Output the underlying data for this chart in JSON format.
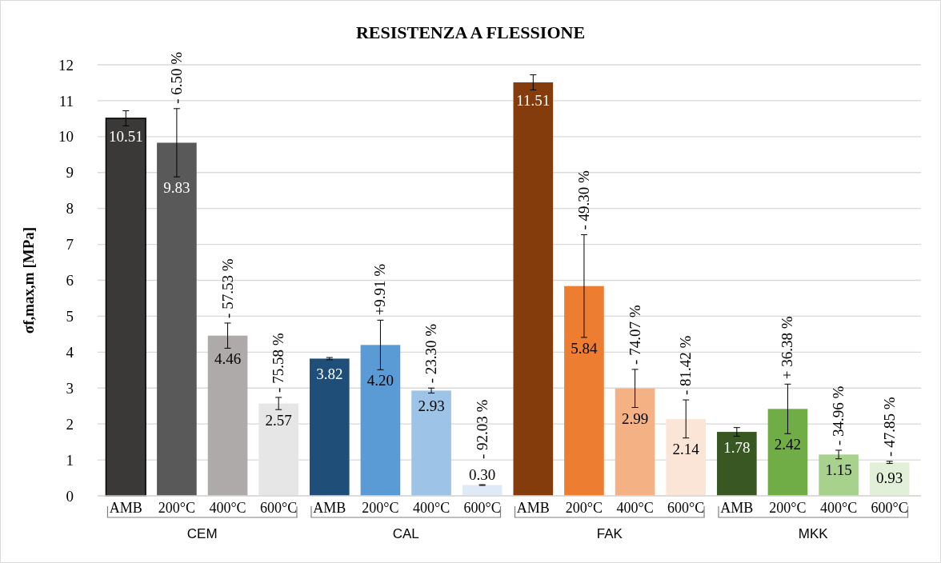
{
  "chart_data": {
    "type": "bar",
    "title": "RESISTENZA A FLESSIONE",
    "ylabel": "σf,max,m [MPa]",
    "categories": [
      "AMB",
      "200°C",
      "400°C",
      "600°C",
      "AMB",
      "200°C",
      "400°C",
      "600°C",
      "AMB",
      "200°C",
      "400°C",
      "600°C",
      "AMB",
      "200°C",
      "400°C",
      "600°C"
    ],
    "values": [
      10.51,
      9.83,
      4.46,
      2.57,
      3.82,
      4.2,
      2.93,
      0.3,
      11.51,
      5.84,
      2.99,
      2.14,
      1.78,
      2.42,
      1.15,
      0.93
    ],
    "colors": [
      "#3a3938",
      "#595959",
      "#aeaaaa",
      "#e7e6e6",
      "#1f4e79",
      "#5b9bd5",
      "#9dc3e6",
      "#deebf7",
      "#843c0c",
      "#ed7d31",
      "#f4b183",
      "#fbe5d6",
      "#385723",
      "#70ad47",
      "#a9d18e",
      "#e2f0d9"
    ],
    "errors": [
      0.21,
      0.95,
      0.35,
      0.17,
      0.03,
      0.69,
      0.07,
      0.01,
      0.21,
      1.43,
      0.53,
      0.53,
      0.12,
      0.69,
      0.12,
      0.03
    ],
    "value_labels": [
      "10.51",
      "9.83",
      "4.46",
      "2.57",
      "3.82",
      "4.20",
      "2.93",
      "0.30",
      "11.51",
      "5.84",
      "2.99",
      "2.14",
      "1.78",
      "2.42",
      "1.15",
      "0.93"
    ],
    "annotations": [
      "CEM",
      "CAL",
      "FAK",
      "MKK",
      "- 6.50 %",
      "- 57.53 %",
      "- 75.58  %",
      "+9.91 %",
      "- 23.30 %",
      "- 92.03 %",
      "- 49.30 %",
      "- 74.07 %",
      "- 81.42 %",
      "+ 36.38 %",
      "- 34.96 %",
      "- 47.85 %"
    ],
    "ylim": [
      0,
      12
    ],
    "yticks": [
      0,
      1,
      2,
      3,
      4,
      5,
      6,
      7,
      8,
      9,
      10,
      11,
      12
    ],
    "grid": "y"
  }
}
